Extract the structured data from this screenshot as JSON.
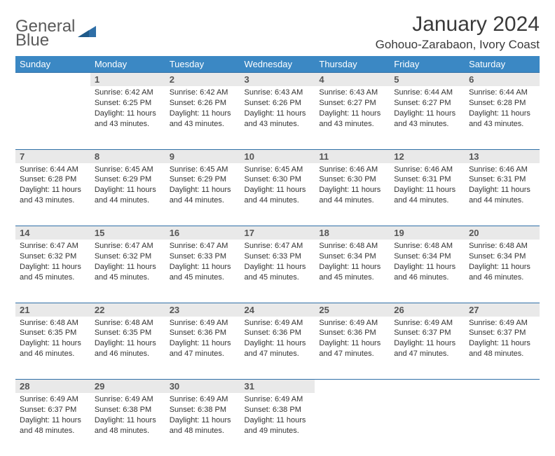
{
  "logo": {
    "top": "General",
    "bottom": "Blue"
  },
  "title": "January 2024",
  "location": "Gohouo-Zarabaon, Ivory Coast",
  "colors": {
    "header_bg": "#3b88c4",
    "header_text": "#ffffff",
    "daynum_bg": "#e9e9e9",
    "rule": "#2f6fa7",
    "logo_gray": "#5a5a5a",
    "logo_blue": "#2f6fa7"
  },
  "dayNames": [
    "Sunday",
    "Monday",
    "Tuesday",
    "Wednesday",
    "Thursday",
    "Friday",
    "Saturday"
  ],
  "firstWeekday": 1,
  "daysInMonth": 31,
  "days": {
    "1": {
      "sunrise": "6:42 AM",
      "sunset": "6:25 PM",
      "daylight": "11 hours and 43 minutes."
    },
    "2": {
      "sunrise": "6:42 AM",
      "sunset": "6:26 PM",
      "daylight": "11 hours and 43 minutes."
    },
    "3": {
      "sunrise": "6:43 AM",
      "sunset": "6:26 PM",
      "daylight": "11 hours and 43 minutes."
    },
    "4": {
      "sunrise": "6:43 AM",
      "sunset": "6:27 PM",
      "daylight": "11 hours and 43 minutes."
    },
    "5": {
      "sunrise": "6:44 AM",
      "sunset": "6:27 PM",
      "daylight": "11 hours and 43 minutes."
    },
    "6": {
      "sunrise": "6:44 AM",
      "sunset": "6:28 PM",
      "daylight": "11 hours and 43 minutes."
    },
    "7": {
      "sunrise": "6:44 AM",
      "sunset": "6:28 PM",
      "daylight": "11 hours and 43 minutes."
    },
    "8": {
      "sunrise": "6:45 AM",
      "sunset": "6:29 PM",
      "daylight": "11 hours and 44 minutes."
    },
    "9": {
      "sunrise": "6:45 AM",
      "sunset": "6:29 PM",
      "daylight": "11 hours and 44 minutes."
    },
    "10": {
      "sunrise": "6:45 AM",
      "sunset": "6:30 PM",
      "daylight": "11 hours and 44 minutes."
    },
    "11": {
      "sunrise": "6:46 AM",
      "sunset": "6:30 PM",
      "daylight": "11 hours and 44 minutes."
    },
    "12": {
      "sunrise": "6:46 AM",
      "sunset": "6:31 PM",
      "daylight": "11 hours and 44 minutes."
    },
    "13": {
      "sunrise": "6:46 AM",
      "sunset": "6:31 PM",
      "daylight": "11 hours and 44 minutes."
    },
    "14": {
      "sunrise": "6:47 AM",
      "sunset": "6:32 PM",
      "daylight": "11 hours and 45 minutes."
    },
    "15": {
      "sunrise": "6:47 AM",
      "sunset": "6:32 PM",
      "daylight": "11 hours and 45 minutes."
    },
    "16": {
      "sunrise": "6:47 AM",
      "sunset": "6:33 PM",
      "daylight": "11 hours and 45 minutes."
    },
    "17": {
      "sunrise": "6:47 AM",
      "sunset": "6:33 PM",
      "daylight": "11 hours and 45 minutes."
    },
    "18": {
      "sunrise": "6:48 AM",
      "sunset": "6:34 PM",
      "daylight": "11 hours and 45 minutes."
    },
    "19": {
      "sunrise": "6:48 AM",
      "sunset": "6:34 PM",
      "daylight": "11 hours and 46 minutes."
    },
    "20": {
      "sunrise": "6:48 AM",
      "sunset": "6:34 PM",
      "daylight": "11 hours and 46 minutes."
    },
    "21": {
      "sunrise": "6:48 AM",
      "sunset": "6:35 PM",
      "daylight": "11 hours and 46 minutes."
    },
    "22": {
      "sunrise": "6:48 AM",
      "sunset": "6:35 PM",
      "daylight": "11 hours and 46 minutes."
    },
    "23": {
      "sunrise": "6:49 AM",
      "sunset": "6:36 PM",
      "daylight": "11 hours and 47 minutes."
    },
    "24": {
      "sunrise": "6:49 AM",
      "sunset": "6:36 PM",
      "daylight": "11 hours and 47 minutes."
    },
    "25": {
      "sunrise": "6:49 AM",
      "sunset": "6:36 PM",
      "daylight": "11 hours and 47 minutes."
    },
    "26": {
      "sunrise": "6:49 AM",
      "sunset": "6:37 PM",
      "daylight": "11 hours and 47 minutes."
    },
    "27": {
      "sunrise": "6:49 AM",
      "sunset": "6:37 PM",
      "daylight": "11 hours and 48 minutes."
    },
    "28": {
      "sunrise": "6:49 AM",
      "sunset": "6:37 PM",
      "daylight": "11 hours and 48 minutes."
    },
    "29": {
      "sunrise": "6:49 AM",
      "sunset": "6:38 PM",
      "daylight": "11 hours and 48 minutes."
    },
    "30": {
      "sunrise": "6:49 AM",
      "sunset": "6:38 PM",
      "daylight": "11 hours and 48 minutes."
    },
    "31": {
      "sunrise": "6:49 AM",
      "sunset": "6:38 PM",
      "daylight": "11 hours and 49 minutes."
    }
  },
  "labels": {
    "sunrise": "Sunrise:",
    "sunset": "Sunset:",
    "daylight": "Daylight:"
  }
}
